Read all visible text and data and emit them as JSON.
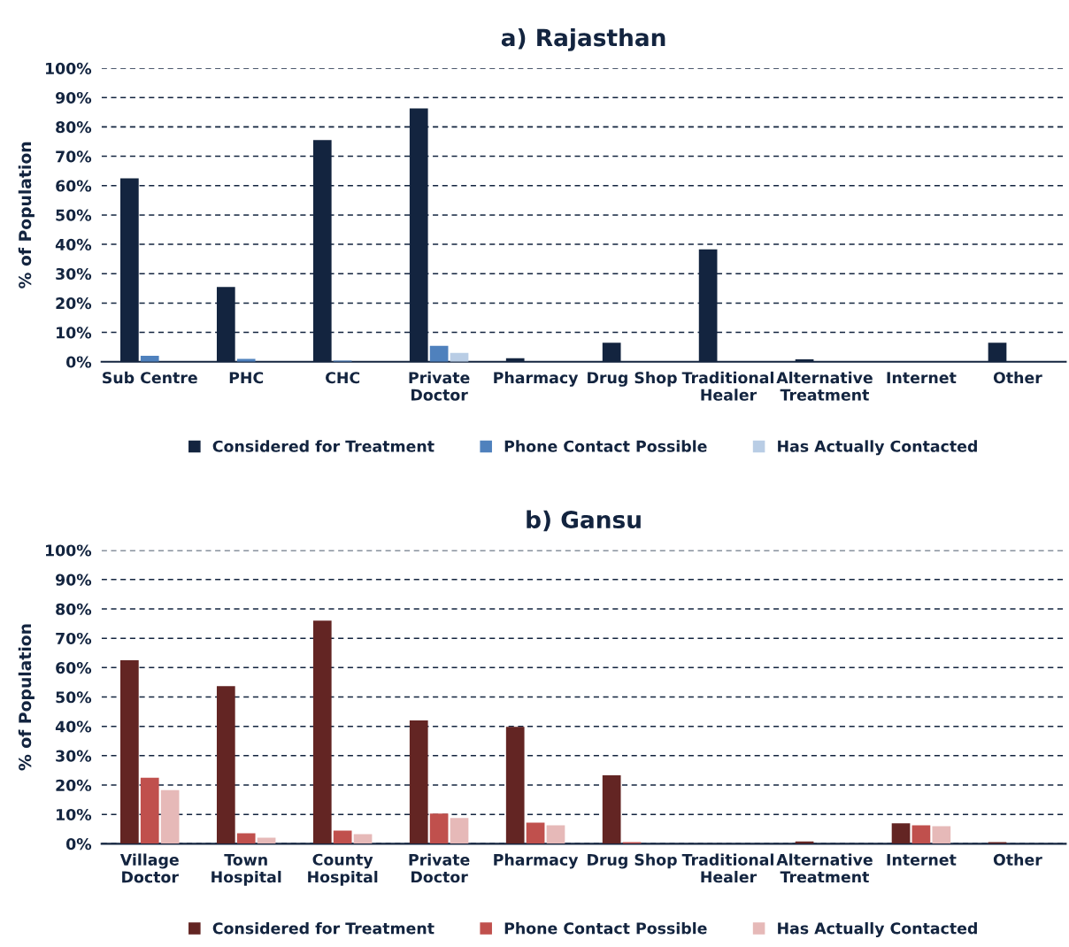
{
  "chart_data": [
    {
      "type": "bar",
      "title": "a) Rajasthan",
      "ylabel": "% of Population",
      "categories": [
        "Sub Centre",
        "PHC",
        "CHC",
        "Private\nDoctor",
        "Pharmacy",
        "Drug Shop",
        "Traditional\nHealer",
        "Alternative\nTreatment",
        "Internet",
        "Other"
      ],
      "series": [
        {
          "name": "Considered for Treatment",
          "color": "#13243f",
          "values": [
            62.5,
            25.5,
            75.5,
            86.3,
            1.2,
            6.5,
            38.3,
            0.8,
            0,
            6.5
          ]
        },
        {
          "name": "Phone Contact Possible",
          "color": "#4f81bd",
          "values": [
            2.0,
            1.0,
            0.4,
            5.4,
            0,
            0,
            null,
            0,
            0,
            0
          ]
        },
        {
          "name": "Has Actually Contacted",
          "color": "#b9cde5",
          "values": [
            null,
            0,
            0,
            3.0,
            0,
            0,
            null,
            0,
            0,
            0
          ]
        }
      ],
      "ylim": [
        0,
        100
      ],
      "yticks": [
        {
          "value": 0,
          "label": "0%"
        },
        {
          "value": 10,
          "label": "10%"
        },
        {
          "value": 20,
          "label": "20%"
        },
        {
          "value": 30,
          "label": "30%"
        },
        {
          "value": 40,
          "label": "40%"
        },
        {
          "value": 50,
          "label": "50%"
        },
        {
          "value": 60,
          "label": "60%"
        },
        {
          "value": 70,
          "label": "70%"
        },
        {
          "value": 80,
          "label": "80%"
        },
        {
          "value": 90,
          "label": "90%"
        },
        {
          "value": 100,
          "label": "100%"
        }
      ],
      "grid": "y",
      "legend": "bottom"
    },
    {
      "type": "bar",
      "title": "b) Gansu",
      "ylabel": "% of Population",
      "categories": [
        "Village\nDoctor",
        "Town\nHospital",
        "County\nHospital",
        "Private\nDoctor",
        "Pharmacy",
        "Drug Shop",
        "Traditional\nHealer",
        "Alternative\nTreatment",
        "Internet",
        "Other"
      ],
      "series": [
        {
          "name": "Considered for Treatment",
          "color": "#632523",
          "values": [
            62.5,
            53.7,
            76.0,
            42.0,
            39.8,
            23.3,
            0,
            0.8,
            7.0,
            0.6
          ]
        },
        {
          "name": "Phone Contact Possible",
          "color": "#c0504d",
          "values": [
            22.5,
            3.6,
            4.5,
            10.3,
            7.2,
            0.6,
            0,
            0,
            6.3,
            0
          ]
        },
        {
          "name": "Has Actually Contacted",
          "color": "#e6b9b8",
          "values": [
            18.3,
            2.1,
            3.3,
            8.8,
            6.3,
            null,
            0,
            0,
            6.0,
            0
          ]
        }
      ],
      "ylim": [
        0,
        100
      ],
      "yticks": [
        {
          "value": 0,
          "label": "0%"
        },
        {
          "value": 10,
          "label": "10%"
        },
        {
          "value": 20,
          "label": "20%"
        },
        {
          "value": 30,
          "label": "30%"
        },
        {
          "value": 40,
          "label": "40%"
        },
        {
          "value": 50,
          "label": "50%"
        },
        {
          "value": 60,
          "label": "60%"
        },
        {
          "value": 70,
          "label": "70%"
        },
        {
          "value": 80,
          "label": "80%"
        },
        {
          "value": 90,
          "label": "90%"
        },
        {
          "value": 100,
          "label": "100%"
        }
      ],
      "grid": "y",
      "legend": "bottom"
    }
  ]
}
